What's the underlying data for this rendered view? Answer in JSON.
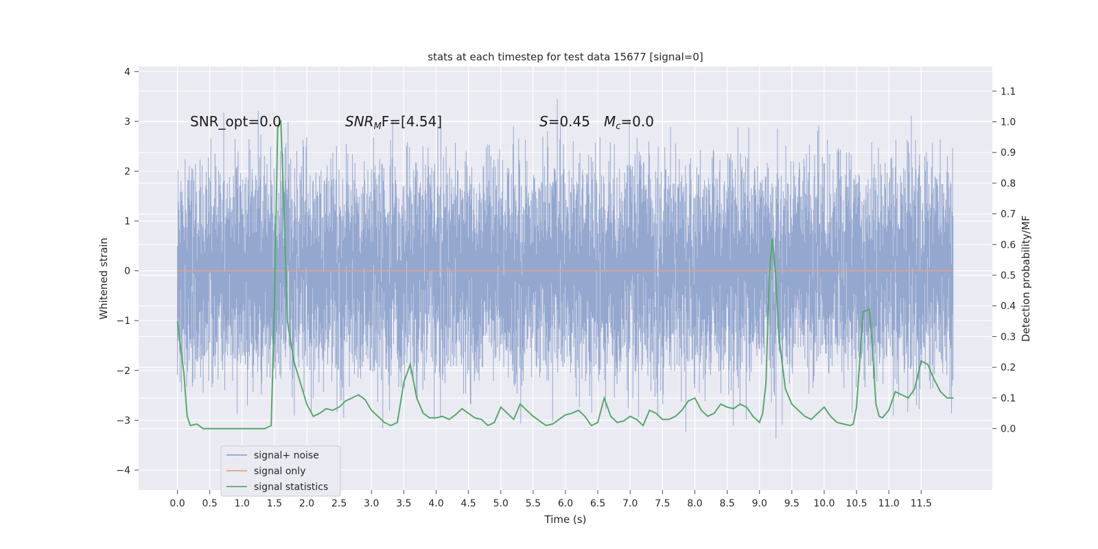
{
  "chart_data": {
    "type": "line",
    "title": "stats at each timestep for test data 15677 [signal=0]",
    "xlabel": "Time (s)",
    "ylabel_left": "Whitened strain",
    "ylabel_right": "Detection probability/MF",
    "xlim": [
      -0.6,
      12.6
    ],
    "ylim_left": [
      -4.4,
      4.1
    ],
    "ylim_right": [
      -0.2,
      1.18
    ],
    "x_ticks": [
      "0.0",
      "0.5",
      "1.0",
      "1.5",
      "2.0",
      "2.5",
      "3.0",
      "3.5",
      "4.0",
      "4.5",
      "5.0",
      "5.5",
      "6.0",
      "6.5",
      "7.0",
      "7.5",
      "8.0",
      "8.5",
      "9.0",
      "9.5",
      "10.0",
      "10.5",
      "11.0",
      "11.5"
    ],
    "y_left_ticks": [
      "−4",
      "−3",
      "−2",
      "−1",
      "0",
      "1",
      "2",
      "3",
      "4"
    ],
    "y_right_ticks": [
      "0.0",
      "0.1",
      "0.2",
      "0.3",
      "0.4",
      "0.5",
      "0.6",
      "0.7",
      "0.8",
      "0.9",
      "1.0",
      "1.1"
    ],
    "grid": true,
    "legend_position": "lower-left",
    "annotations": {
      "snr_opt": "SNR_opt=0.0",
      "snr_mf_base": "SNR",
      "snr_mf_sub": "M",
      "snr_mf_rest": "F=[4.54]",
      "s_sym": "S",
      "s_val": "=0.45",
      "mc_sym": "M",
      "mc_sub": "c",
      "mc_val": "=0.0"
    },
    "series": [
      {
        "name": "signal+ noise",
        "axis": "left",
        "color": "#8fa3cc",
        "description_range": [
          -3.6,
          3.75
        ],
        "x_range": [
          0.0,
          12.0
        ]
      },
      {
        "name": "signal only",
        "axis": "left",
        "color": "#e0a58a",
        "x": [
          0.0,
          12.0
        ],
        "y": [
          0.0,
          0.0
        ]
      },
      {
        "name": "signal statistics",
        "axis": "right",
        "color": "#55a868",
        "x": [
          0.0,
          0.1,
          0.15,
          0.2,
          0.3,
          0.4,
          0.5,
          0.6,
          0.8,
          1.0,
          1.2,
          1.35,
          1.45,
          1.5,
          1.55,
          1.6,
          1.65,
          1.7,
          1.8,
          1.9,
          2.0,
          2.1,
          2.2,
          2.3,
          2.4,
          2.5,
          2.6,
          2.7,
          2.8,
          2.9,
          3.0,
          3.1,
          3.2,
          3.3,
          3.4,
          3.5,
          3.6,
          3.7,
          3.8,
          3.9,
          4.0,
          4.1,
          4.2,
          4.3,
          4.4,
          4.5,
          4.6,
          4.7,
          4.8,
          4.9,
          5.0,
          5.1,
          5.2,
          5.3,
          5.4,
          5.5,
          5.6,
          5.7,
          5.8,
          5.9,
          6.0,
          6.1,
          6.2,
          6.3,
          6.4,
          6.5,
          6.6,
          6.7,
          6.8,
          6.9,
          7.0,
          7.1,
          7.2,
          7.3,
          7.4,
          7.5,
          7.6,
          7.7,
          7.8,
          7.9,
          8.0,
          8.1,
          8.2,
          8.3,
          8.4,
          8.5,
          8.6,
          8.7,
          8.8,
          8.9,
          9.0,
          9.05,
          9.1,
          9.15,
          9.2,
          9.25,
          9.3,
          9.4,
          9.5,
          9.6,
          9.7,
          9.8,
          9.9,
          10.0,
          10.1,
          10.2,
          10.3,
          10.4,
          10.45,
          10.5,
          10.55,
          10.6,
          10.7,
          10.75,
          10.8,
          10.85,
          10.9,
          11.0,
          11.1,
          11.2,
          11.3,
          11.4,
          11.5,
          11.6,
          11.7,
          11.8,
          11.9,
          12.0
        ],
        "y": [
          0.35,
          0.18,
          0.04,
          0.01,
          0.015,
          0.0,
          0.0,
          0.0,
          0.0,
          0.0,
          0.0,
          0.0,
          0.01,
          0.4,
          0.98,
          1.0,
          0.7,
          0.35,
          0.22,
          0.15,
          0.08,
          0.04,
          0.05,
          0.065,
          0.06,
          0.07,
          0.09,
          0.1,
          0.11,
          0.095,
          0.06,
          0.04,
          0.02,
          0.01,
          0.02,
          0.15,
          0.21,
          0.1,
          0.05,
          0.035,
          0.035,
          0.04,
          0.03,
          0.045,
          0.065,
          0.05,
          0.035,
          0.03,
          0.01,
          0.02,
          0.07,
          0.05,
          0.03,
          0.08,
          0.06,
          0.04,
          0.025,
          0.01,
          0.015,
          0.03,
          0.045,
          0.05,
          0.06,
          0.04,
          0.01,
          0.02,
          0.1,
          0.04,
          0.02,
          0.025,
          0.04,
          0.03,
          0.01,
          0.06,
          0.05,
          0.03,
          0.03,
          0.04,
          0.06,
          0.09,
          0.1,
          0.06,
          0.04,
          0.05,
          0.08,
          0.07,
          0.065,
          0.08,
          0.07,
          0.04,
          0.02,
          0.05,
          0.15,
          0.5,
          0.62,
          0.5,
          0.3,
          0.13,
          0.08,
          0.06,
          0.04,
          0.03,
          0.05,
          0.07,
          0.04,
          0.02,
          0.015,
          0.01,
          0.015,
          0.07,
          0.22,
          0.38,
          0.39,
          0.25,
          0.08,
          0.04,
          0.035,
          0.06,
          0.12,
          0.11,
          0.1,
          0.13,
          0.22,
          0.21,
          0.16,
          0.12,
          0.1,
          0.1
        ]
      }
    ]
  }
}
